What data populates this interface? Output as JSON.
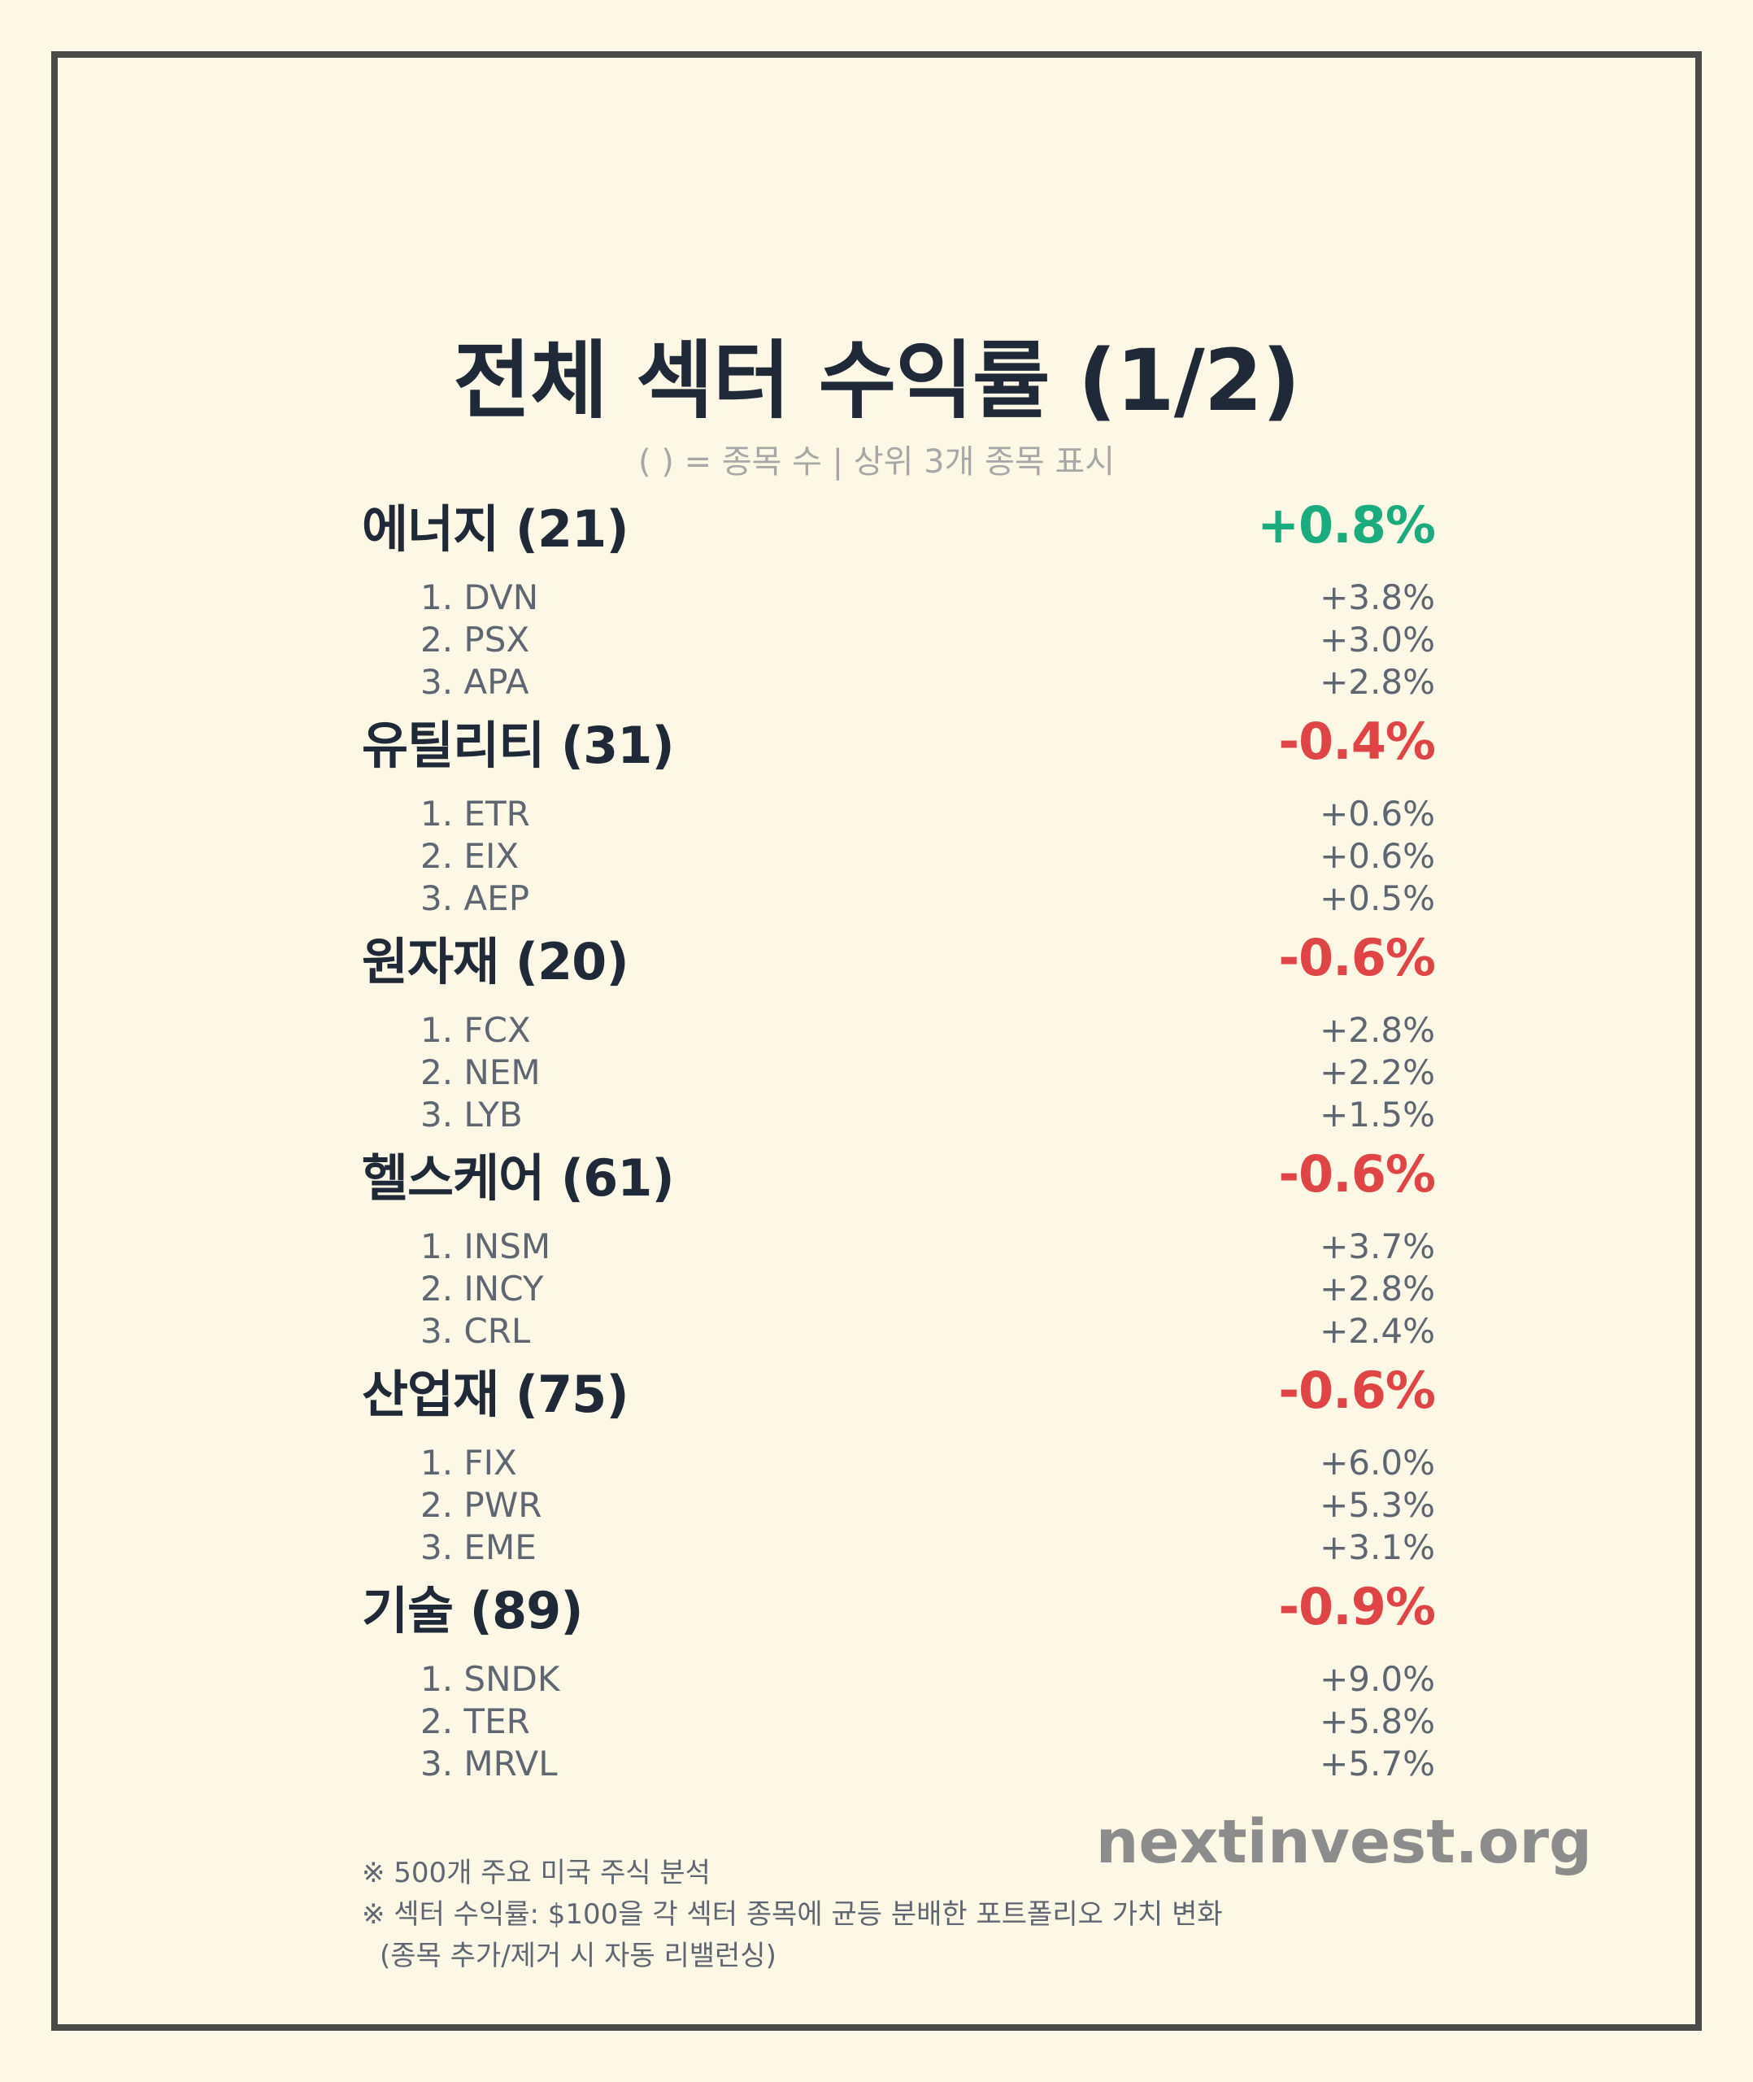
{
  "title": "전체 섹터 수익률 (1/2)",
  "subtitle": "( ) = 종목 수 | 상위 3개 종목 표시",
  "colors": {
    "positive": "#1aab7f",
    "negative": "#df4545",
    "background": "#fdf8e6",
    "frame": "#4a4a48"
  },
  "sectors": [
    {
      "name": "에너지 (21)",
      "return": "+0.8%",
      "direction": "positive",
      "stocks": [
        {
          "name": "1. DVN",
          "return": "+3.8%"
        },
        {
          "name": "2. PSX",
          "return": "+3.0%"
        },
        {
          "name": "3. APA",
          "return": "+2.8%"
        }
      ]
    },
    {
      "name": "유틸리티 (31)",
      "return": "-0.4%",
      "direction": "negative",
      "stocks": [
        {
          "name": "1. ETR",
          "return": "+0.6%"
        },
        {
          "name": "2. EIX",
          "return": "+0.6%"
        },
        {
          "name": "3. AEP",
          "return": "+0.5%"
        }
      ]
    },
    {
      "name": "원자재 (20)",
      "return": "-0.6%",
      "direction": "negative",
      "stocks": [
        {
          "name": "1. FCX",
          "return": "+2.8%"
        },
        {
          "name": "2. NEM",
          "return": "+2.2%"
        },
        {
          "name": "3. LYB",
          "return": "+1.5%"
        }
      ]
    },
    {
      "name": "헬스케어 (61)",
      "return": "-0.6%",
      "direction": "negative",
      "stocks": [
        {
          "name": "1. INSM",
          "return": "+3.7%"
        },
        {
          "name": "2. INCY",
          "return": "+2.8%"
        },
        {
          "name": "3. CRL",
          "return": "+2.4%"
        }
      ]
    },
    {
      "name": "산업재 (75)",
      "return": "-0.6%",
      "direction": "negative",
      "stocks": [
        {
          "name": "1. FIX",
          "return": "+6.0%"
        },
        {
          "name": "2. PWR",
          "return": "+5.3%"
        },
        {
          "name": "3. EME",
          "return": "+3.1%"
        }
      ]
    },
    {
      "name": "기술 (89)",
      "return": "-0.9%",
      "direction": "negative",
      "stocks": [
        {
          "name": "1. SNDK",
          "return": "+9.0%"
        },
        {
          "name": "2. TER",
          "return": "+5.8%"
        },
        {
          "name": "3. MRVL",
          "return": "+5.7%"
        }
      ]
    }
  ],
  "brand": "nextinvest.org",
  "notes": [
    "※ 500개 주요 미국 주식 분석",
    "※ 섹터 수익률: $100을 각 섹터 종목에 균등 분배한 포트폴리오 가치 변화",
    "(종목 추가/제거 시 자동 리밸런싱)"
  ]
}
